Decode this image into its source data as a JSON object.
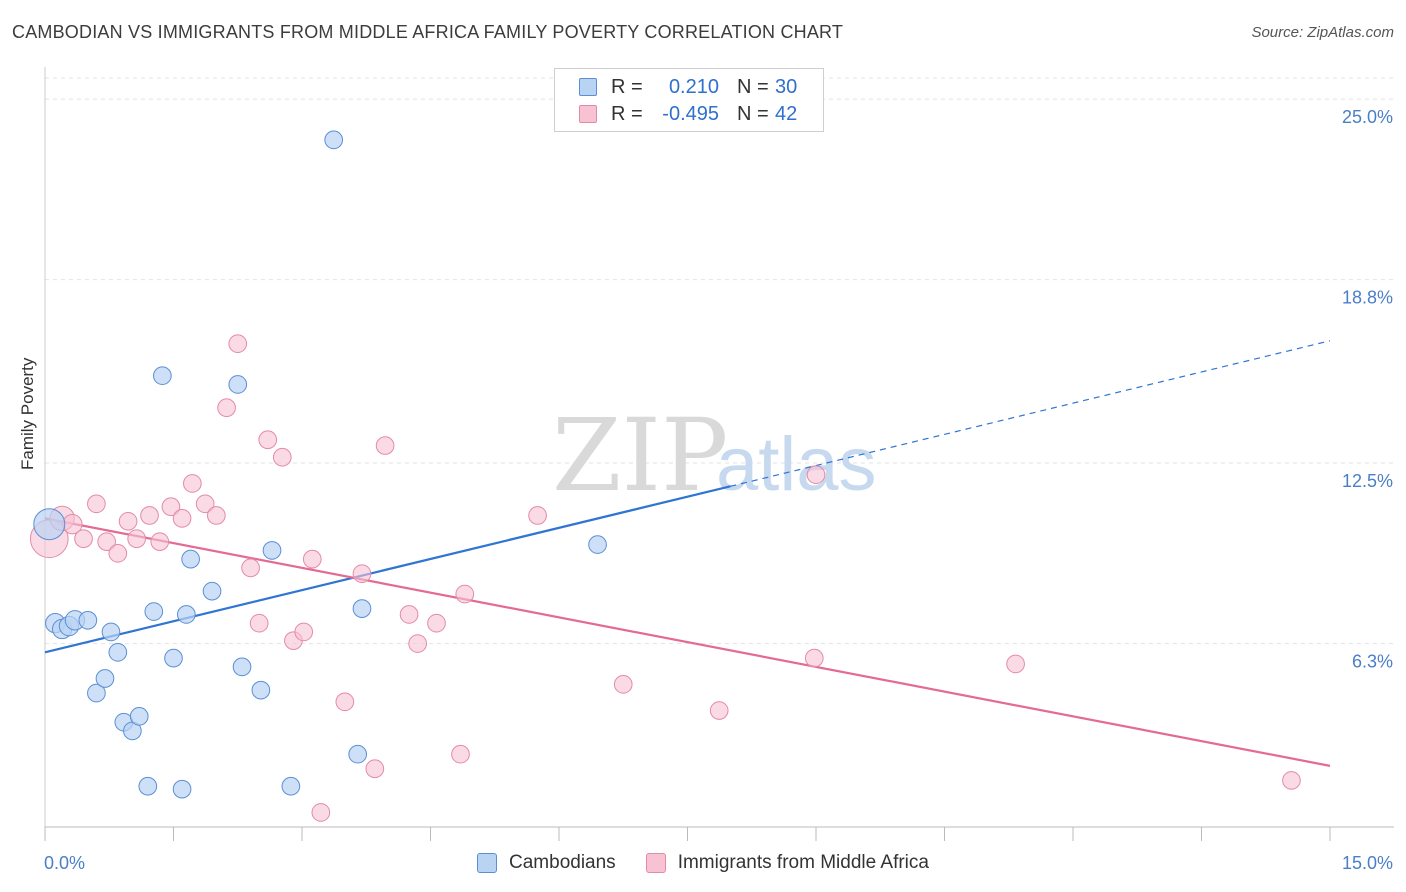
{
  "title": "CAMBODIAN VS IMMIGRANTS FROM MIDDLE AFRICA FAMILY POVERTY CORRELATION CHART",
  "source": "Source: ZipAtlas.com",
  "watermark": {
    "zip": "ZIP",
    "atlas": "atlas"
  },
  "legend": {
    "rows": [
      {
        "r_label": "R =",
        "r_value": "0.210",
        "n_label": "N =",
        "n_value": "30"
      },
      {
        "r_label": "R =",
        "r_value": "-0.495",
        "n_label": "N =",
        "n_value": "42"
      }
    ]
  },
  "bottom_legend": {
    "series1": "Cambodians",
    "series2": "Immigrants from Middle Africa"
  },
  "colors": {
    "blue_fill": "#b9d3f3",
    "blue_stroke": "#5b8fd4",
    "blue_line": "#2f75d3",
    "pink_fill": "#f7c3d3",
    "pink_stroke": "#e48aa8",
    "pink_line": "#e46a96",
    "tick": "#4a7fc8",
    "grid": "#e3e3e3"
  },
  "chart_data": {
    "type": "scatter",
    "title": "CAMBODIAN VS IMMIGRANTS FROM MIDDLE AFRICA FAMILY POVERTY CORRELATION CHART",
    "xlabel": "",
    "ylabel": "Family Poverty",
    "xlim": [
      0,
      15
    ],
    "ylim": [
      0,
      26
    ],
    "x_tick_labels": [
      "0.0%",
      "15.0%"
    ],
    "y_ticks": [
      6.3,
      12.5,
      18.8,
      25.0
    ],
    "y_tick_labels": [
      "6.3%",
      "12.5%",
      "18.8%",
      "25.0%"
    ],
    "legend_position": "top-center",
    "series": [
      {
        "name": "Cambodians",
        "r": 0.21,
        "n": 30,
        "trend": {
          "x0": 0.0,
          "y0": 6.0,
          "x1": 8.0,
          "y1": 11.7,
          "dashed_to_x": 15.0,
          "dashed_to_y": 16.7
        },
        "points": [
          [
            0.05,
            10.4,
            18
          ],
          [
            0.12,
            7.0,
            11
          ],
          [
            0.2,
            6.8,
            11
          ],
          [
            0.28,
            6.9,
            11
          ],
          [
            0.35,
            7.1,
            11
          ],
          [
            0.5,
            7.1,
            10
          ],
          [
            0.6,
            4.6,
            10
          ],
          [
            0.7,
            5.1,
            10
          ],
          [
            0.77,
            6.7,
            10
          ],
          [
            0.85,
            6.0,
            10
          ],
          [
            0.92,
            3.6,
            10
          ],
          [
            1.02,
            3.3,
            10
          ],
          [
            1.1,
            3.8,
            10
          ],
          [
            1.2,
            1.4,
            10
          ],
          [
            1.27,
            7.4,
            10
          ],
          [
            1.37,
            15.5,
            10
          ],
          [
            1.5,
            5.8,
            10
          ],
          [
            1.6,
            1.3,
            10
          ],
          [
            1.65,
            7.3,
            10
          ],
          [
            1.7,
            9.2,
            10
          ],
          [
            1.95,
            8.1,
            10
          ],
          [
            2.25,
            15.2,
            10
          ],
          [
            2.3,
            5.5,
            10
          ],
          [
            2.52,
            4.7,
            10
          ],
          [
            2.65,
            9.5,
            10
          ],
          [
            2.87,
            1.4,
            10
          ],
          [
            3.37,
            23.6,
            10
          ],
          [
            3.65,
            2.5,
            10
          ],
          [
            3.7,
            7.5,
            10
          ],
          [
            6.45,
            9.7,
            10
          ]
        ]
      },
      {
        "name": "Immigrants from Middle Africa",
        "r": -0.495,
        "n": 42,
        "trend": {
          "x0": 0.0,
          "y0": 10.6,
          "x1": 15.0,
          "y1": 2.1
        },
        "points": [
          [
            0.05,
            9.9,
            22
          ],
          [
            0.2,
            10.6,
            14
          ],
          [
            0.32,
            10.4,
            11
          ],
          [
            0.45,
            9.9,
            10
          ],
          [
            0.6,
            11.1,
            10
          ],
          [
            0.72,
            9.8,
            10
          ],
          [
            0.85,
            9.4,
            10
          ],
          [
            0.97,
            10.5,
            10
          ],
          [
            1.07,
            9.9,
            10
          ],
          [
            1.22,
            10.7,
            10
          ],
          [
            1.34,
            9.8,
            10
          ],
          [
            1.47,
            11.0,
            10
          ],
          [
            1.6,
            10.6,
            10
          ],
          [
            1.72,
            11.8,
            10
          ],
          [
            1.87,
            11.1,
            10
          ],
          [
            2.0,
            10.7,
            10
          ],
          [
            2.12,
            14.4,
            10
          ],
          [
            2.25,
            16.6,
            10
          ],
          [
            2.4,
            8.9,
            10
          ],
          [
            2.5,
            7.0,
            10
          ],
          [
            2.6,
            13.3,
            10
          ],
          [
            2.77,
            12.7,
            10
          ],
          [
            2.9,
            6.4,
            10
          ],
          [
            3.02,
            6.7,
            10
          ],
          [
            3.12,
            9.2,
            10
          ],
          [
            3.22,
            0.5,
            10
          ],
          [
            3.5,
            4.3,
            10
          ],
          [
            3.7,
            8.7,
            10
          ],
          [
            3.85,
            2.0,
            10
          ],
          [
            3.97,
            13.1,
            10
          ],
          [
            4.25,
            7.3,
            10
          ],
          [
            4.35,
            6.3,
            10
          ],
          [
            4.57,
            7.0,
            10
          ],
          [
            4.85,
            2.5,
            10
          ],
          [
            4.9,
            8.0,
            10
          ],
          [
            5.75,
            10.7,
            10
          ],
          [
            6.75,
            4.9,
            10
          ],
          [
            7.87,
            4.0,
            10
          ],
          [
            8.98,
            5.8,
            10
          ],
          [
            9.0,
            12.1,
            10
          ],
          [
            11.33,
            5.6,
            10
          ],
          [
            14.55,
            1.6,
            10
          ]
        ]
      }
    ]
  }
}
